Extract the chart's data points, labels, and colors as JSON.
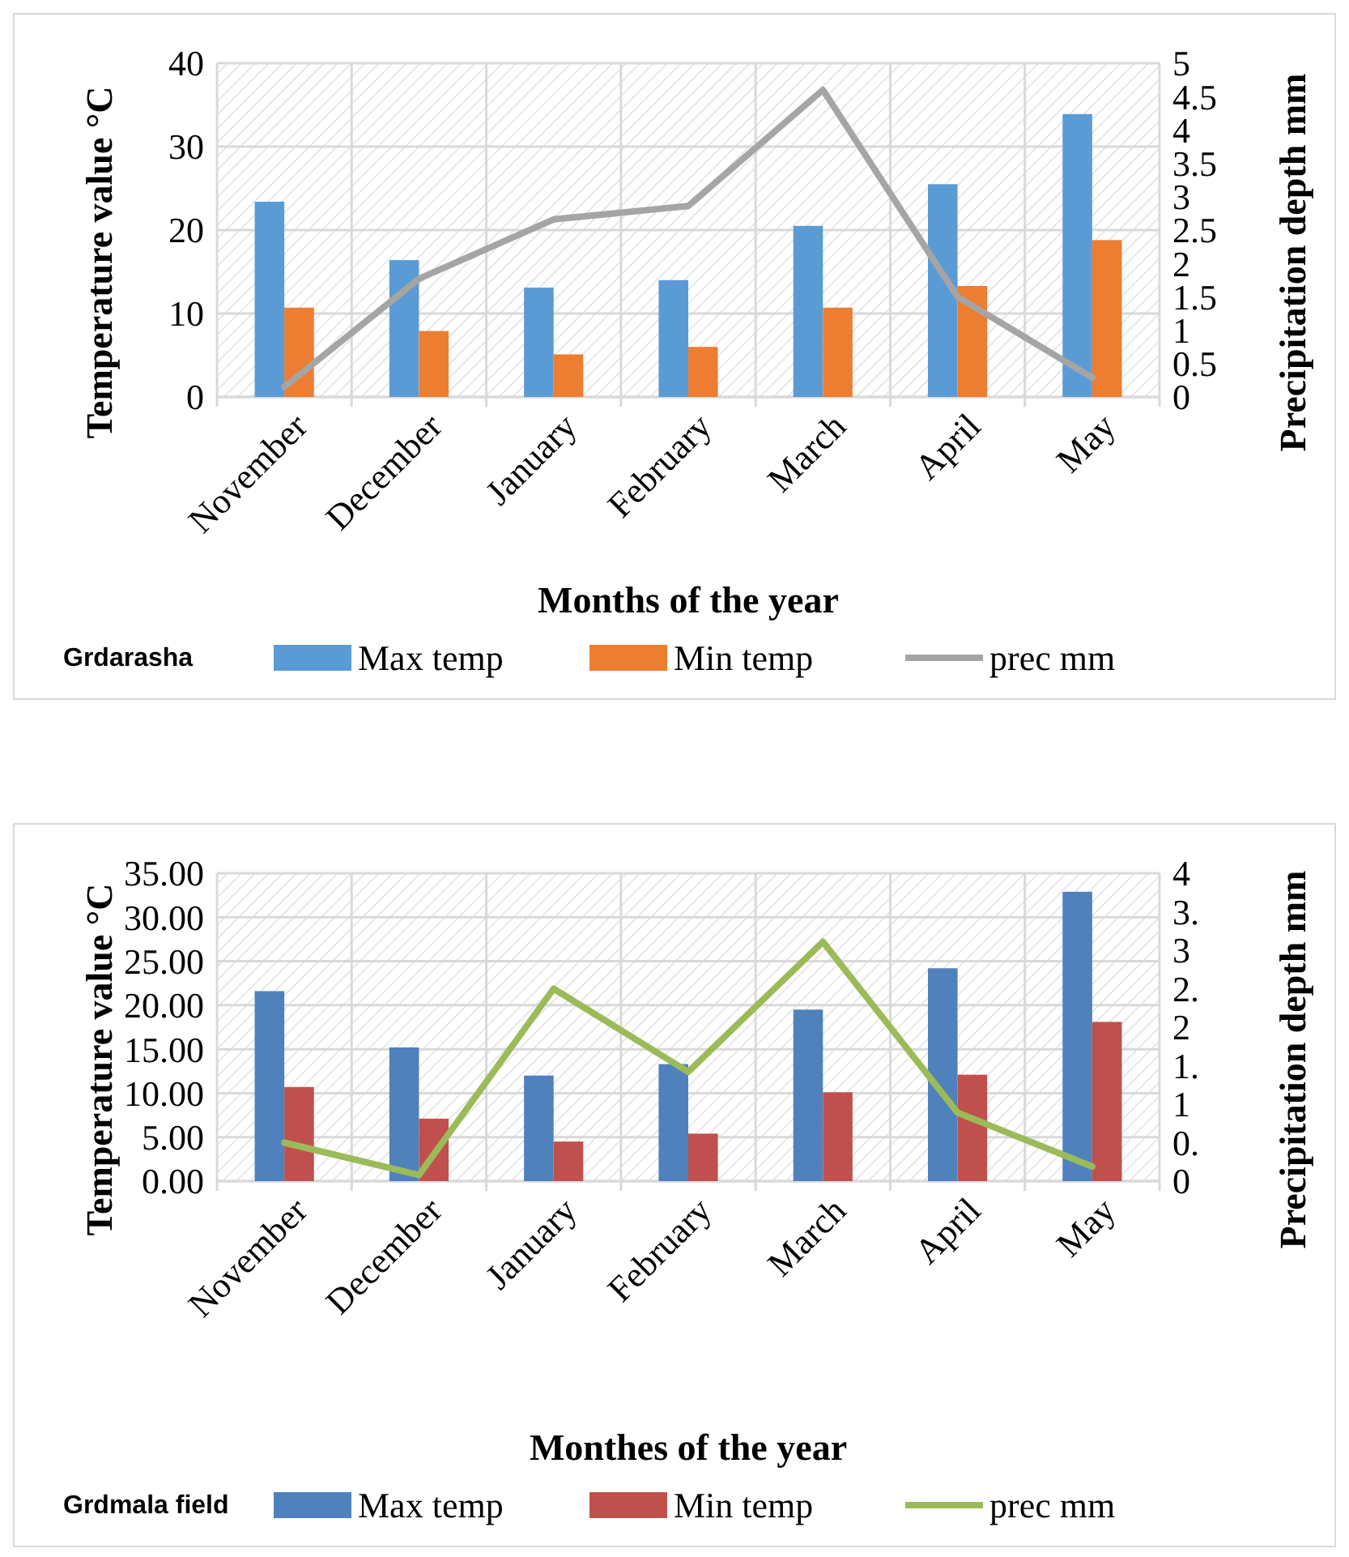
{
  "chart_data": [
    {
      "type": "bar",
      "title": "Grdarasha",
      "xlabel": "Months of the year",
      "ylabel": "Temperature value °C",
      "y2label": "Precipitation depth mm",
      "categories": [
        "November",
        "December",
        "January",
        "February",
        "March",
        "April",
        "May"
      ],
      "series": [
        {
          "name": "Max temp",
          "color": "#5b9bd5",
          "values": [
            23.4,
            16.4,
            13.1,
            14.0,
            20.5,
            25.5,
            33.9
          ]
        },
        {
          "name": "Min temp",
          "color": "#ed7d31",
          "values": [
            10.7,
            7.9,
            5.1,
            6.0,
            10.7,
            13.3,
            18.8
          ]
        },
        {
          "name": "prec mm",
          "type": "line",
          "axis": "y2",
          "color": "#a5a5a5",
          "values": [
            0.15,
            1.77,
            2.66,
            2.86,
            4.6,
            1.5,
            0.29
          ]
        }
      ],
      "ylim": [
        0,
        40
      ],
      "yticks": [
        0,
        10,
        20,
        30,
        40
      ],
      "y2lim": [
        0,
        5
      ],
      "y2ticks": [
        0,
        0.5,
        1,
        1.5,
        2,
        2.5,
        3,
        3.5,
        4,
        4.5,
        5
      ],
      "grid": true,
      "legend": "bottom"
    },
    {
      "type": "bar",
      "title": "Grdmala field",
      "xlabel": "Monthes of the year",
      "ylabel": "Temperature value °C",
      "y2label": "Precipitation depth mm",
      "categories": [
        "November",
        "December",
        "January",
        "February",
        "March",
        "April",
        "May"
      ],
      "series": [
        {
          "name": "Max temp",
          "color": "#4f81bd",
          "values": [
            21.6,
            15.2,
            12.0,
            13.3,
            19.5,
            24.2,
            32.9
          ]
        },
        {
          "name": "Min temp",
          "color": "#c0504d",
          "values": [
            10.7,
            7.1,
            4.5,
            5.4,
            10.1,
            12.1,
            18.1
          ]
        },
        {
          "name": "prec mm",
          "type": "line",
          "axis": "y2",
          "color": "#9bbb59",
          "values": [
            0.5,
            0.08,
            2.5,
            1.42,
            3.11,
            0.89,
            0.19
          ]
        }
      ],
      "ylim": [
        0,
        35
      ],
      "yticks": [
        {
          "value": 0,
          "label": "0.00"
        },
        {
          "value": 5,
          "label": "5.00"
        },
        {
          "value": 10,
          "label": "10.00"
        },
        {
          "value": 15,
          "label": "15.00"
        },
        {
          "value": 20,
          "label": "20.00"
        },
        {
          "value": 25,
          "label": "25.00"
        },
        {
          "value": 30,
          "label": "30.00"
        },
        {
          "value": 35,
          "label": "35.00"
        }
      ],
      "y2lim": [
        0,
        4
      ],
      "y2ticks": [
        0,
        {
          "value": 0.5,
          "label": "0."
        },
        1,
        {
          "value": 1.5,
          "label": "1."
        },
        2,
        {
          "value": 2.5,
          "label": "2."
        },
        3,
        {
          "value": 3.5,
          "label": "3."
        },
        4
      ],
      "grid": true,
      "legend": "bottom"
    }
  ]
}
